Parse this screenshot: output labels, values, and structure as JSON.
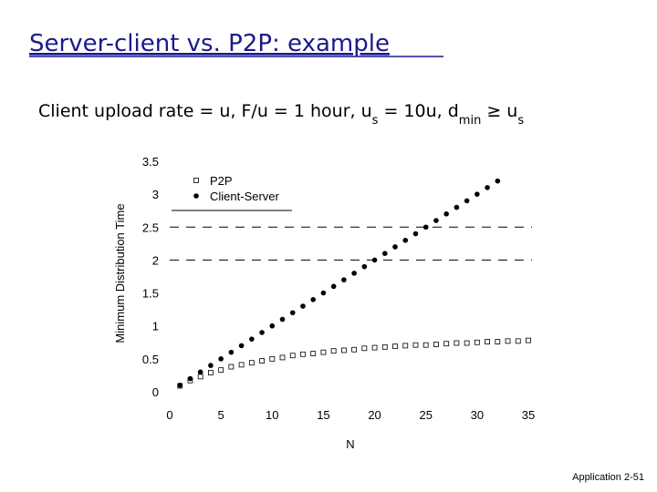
{
  "chart_data": {
    "type": "scatter",
    "title": "Server-client vs. P2P: example",
    "subtitle_parts": [
      {
        "text": "Client upload rate = u,  F/u = 1 hour,  u",
        "sub": false
      },
      {
        "text": "s",
        "sub": true
      },
      {
        "text": " = 10u,  d",
        "sub": false
      },
      {
        "text": "min",
        "sub": true
      },
      {
        "text": " ≥ u",
        "sub": false
      },
      {
        "text": "s",
        "sub": true
      }
    ],
    "x_label": "N",
    "y_label": "Minimum Distribution Time",
    "xlim": [
      0,
      35
    ],
    "ylim": [
      0,
      3.5
    ],
    "xticks": [
      0,
      5,
      10,
      15,
      20,
      25,
      30,
      35
    ],
    "yticks": [
      0,
      0.5,
      1,
      1.5,
      2,
      2.5,
      3,
      3.5
    ],
    "hlines": [
      2,
      2.5
    ],
    "legend": "top-left",
    "series": [
      {
        "name": "P2P",
        "color": "#000000",
        "marker": "open-square",
        "x": [
          1,
          2,
          3,
          4,
          5,
          6,
          7,
          8,
          9,
          10,
          11,
          12,
          13,
          14,
          15,
          16,
          17,
          18,
          19,
          20,
          21,
          22,
          23,
          24,
          25,
          26,
          27,
          28,
          29,
          30,
          31,
          32,
          33,
          34,
          35
        ],
        "values": [
          0.09,
          0.17,
          0.23,
          0.29,
          0.33,
          0.38,
          0.41,
          0.44,
          0.47,
          0.5,
          0.52,
          0.55,
          0.57,
          0.58,
          0.6,
          0.62,
          0.63,
          0.64,
          0.66,
          0.67,
          0.68,
          0.69,
          0.7,
          0.71,
          0.71,
          0.72,
          0.73,
          0.74,
          0.74,
          0.75,
          0.76,
          0.76,
          0.77,
          0.77,
          0.78
        ]
      },
      {
        "name": "Client-Server",
        "color": "#000000",
        "marker": "filled-circle",
        "x": [
          1,
          2,
          3,
          4,
          5,
          6,
          7,
          8,
          9,
          10,
          11,
          12,
          13,
          14,
          15,
          16,
          17,
          18,
          19,
          20,
          21,
          22,
          23,
          24,
          25,
          26,
          27,
          28,
          29,
          30,
          31,
          32
        ],
        "values": [
          0.1,
          0.2,
          0.3,
          0.4,
          0.5,
          0.6,
          0.7,
          0.8,
          0.9,
          1.0,
          1.1,
          1.2,
          1.3,
          1.4,
          1.5,
          1.6,
          1.7,
          1.8,
          1.9,
          2.0,
          2.1,
          2.2,
          2.3,
          2.4,
          2.5,
          2.6,
          2.7,
          2.8,
          2.9,
          3.0,
          3.1,
          3.2
        ]
      }
    ],
    "footer": "Application 2-51"
  }
}
